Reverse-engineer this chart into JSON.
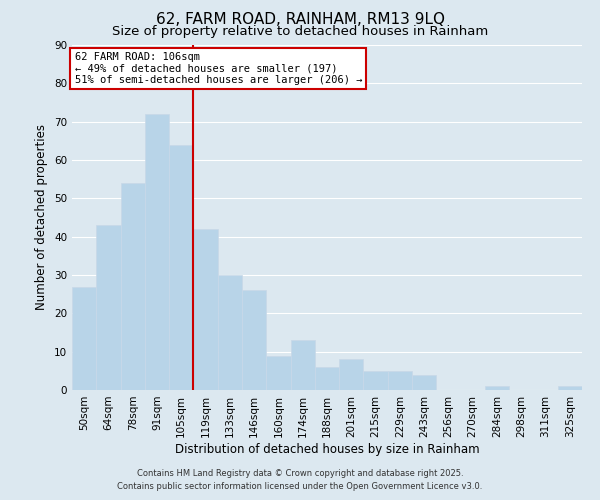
{
  "title": "62, FARM ROAD, RAINHAM, RM13 9LQ",
  "subtitle": "Size of property relative to detached houses in Rainham",
  "xlabel": "Distribution of detached houses by size in Rainham",
  "ylabel": "Number of detached properties",
  "bar_labels": [
    "50sqm",
    "64sqm",
    "78sqm",
    "91sqm",
    "105sqm",
    "119sqm",
    "133sqm",
    "146sqm",
    "160sqm",
    "174sqm",
    "188sqm",
    "201sqm",
    "215sqm",
    "229sqm",
    "243sqm",
    "256sqm",
    "270sqm",
    "284sqm",
    "298sqm",
    "311sqm",
    "325sqm"
  ],
  "bar_values": [
    27,
    43,
    54,
    72,
    64,
    42,
    30,
    26,
    9,
    13,
    6,
    8,
    5,
    5,
    4,
    0,
    0,
    1,
    0,
    0,
    1
  ],
  "bar_color": "#b8d4e8",
  "bar_edge_color": "#c8d8e8",
  "vline_x_idx": 4,
  "vline_color": "#cc0000",
  "ylim": [
    0,
    90
  ],
  "yticks": [
    0,
    10,
    20,
    30,
    40,
    50,
    60,
    70,
    80,
    90
  ],
  "annotation_line1": "62 FARM ROAD: 106sqm",
  "annotation_line2": "← 49% of detached houses are smaller (197)",
  "annotation_line3": "51% of semi-detached houses are larger (206) →",
  "annotation_box_color": "#ffffff",
  "annotation_box_edge": "#cc0000",
  "background_color": "#dce8f0",
  "grid_color": "#ffffff",
  "footer_line1": "Contains HM Land Registry data © Crown copyright and database right 2025.",
  "footer_line2": "Contains public sector information licensed under the Open Government Licence v3.0.",
  "title_fontsize": 11,
  "subtitle_fontsize": 9.5,
  "axis_label_fontsize": 8.5,
  "tick_fontsize": 7.5,
  "annotation_fontsize": 7.5,
  "footer_fontsize": 6
}
